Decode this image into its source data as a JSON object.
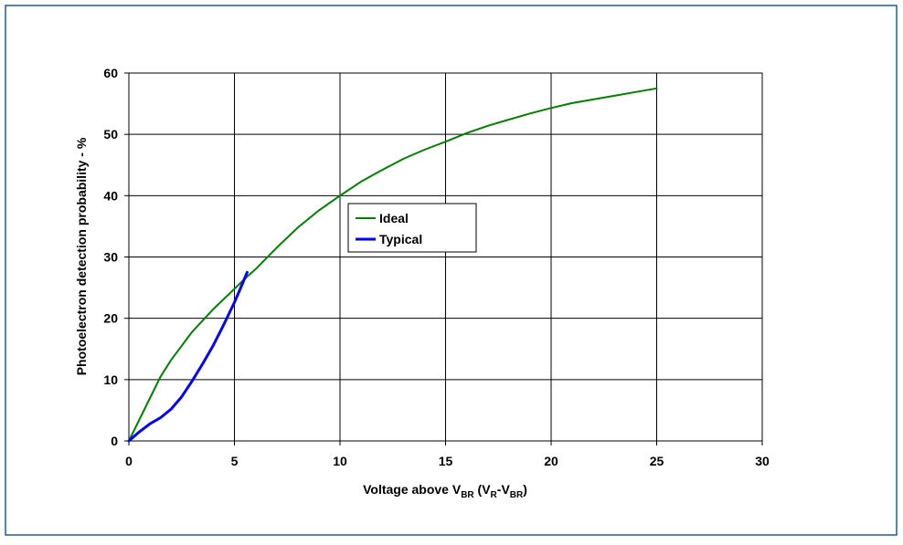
{
  "chart_data": {
    "type": "line",
    "title": "",
    "xlabel": {
      "parts": [
        {
          "text": "Voltage above V",
          "sub": false
        },
        {
          "text": "BR",
          "sub": true
        },
        {
          "text": " (V",
          "sub": false
        },
        {
          "text": "R",
          "sub": true
        },
        {
          "text": "-V",
          "sub": false
        },
        {
          "text": "BR",
          "sub": true
        },
        {
          "text": ")",
          "sub": false
        }
      ]
    },
    "ylabel": "Photoelectron detection probability - %",
    "xlim": [
      0,
      30
    ],
    "ylim": [
      0,
      60
    ],
    "xticks": [
      0,
      5,
      10,
      15,
      20,
      25,
      30
    ],
    "yticks": [
      0,
      10,
      20,
      30,
      40,
      50,
      60
    ],
    "grid": true,
    "legend_position": "center",
    "series": [
      {
        "name": "Ideal",
        "color": "#008000",
        "x": [
          0,
          1,
          1.5,
          2,
          3,
          4,
          5,
          5.6,
          6,
          7,
          8,
          9,
          10,
          11,
          12,
          13,
          14,
          15,
          16,
          17,
          18,
          19,
          20,
          21,
          22,
          23,
          24,
          25
        ],
        "y": [
          0,
          7,
          10.5,
          13.2,
          17.8,
          21.5,
          24.8,
          26.8,
          28,
          31.5,
          34.8,
          37.6,
          40,
          42.3,
          44.2,
          46,
          47.5,
          48.8,
          50.2,
          51.4,
          52.4,
          53.4,
          54.3,
          55.1,
          55.7,
          56.3,
          56.9,
          57.5
        ]
      },
      {
        "name": "Typical",
        "color": "#0000ff",
        "x": [
          0,
          0.5,
          1,
          1.5,
          2,
          2.5,
          3,
          3.5,
          4,
          4.5,
          5,
          5.3,
          5.6
        ],
        "y": [
          0,
          1.5,
          2.8,
          3.8,
          5.2,
          7.2,
          9.8,
          12.6,
          15.6,
          19,
          22.6,
          25,
          27.5
        ]
      }
    ]
  }
}
